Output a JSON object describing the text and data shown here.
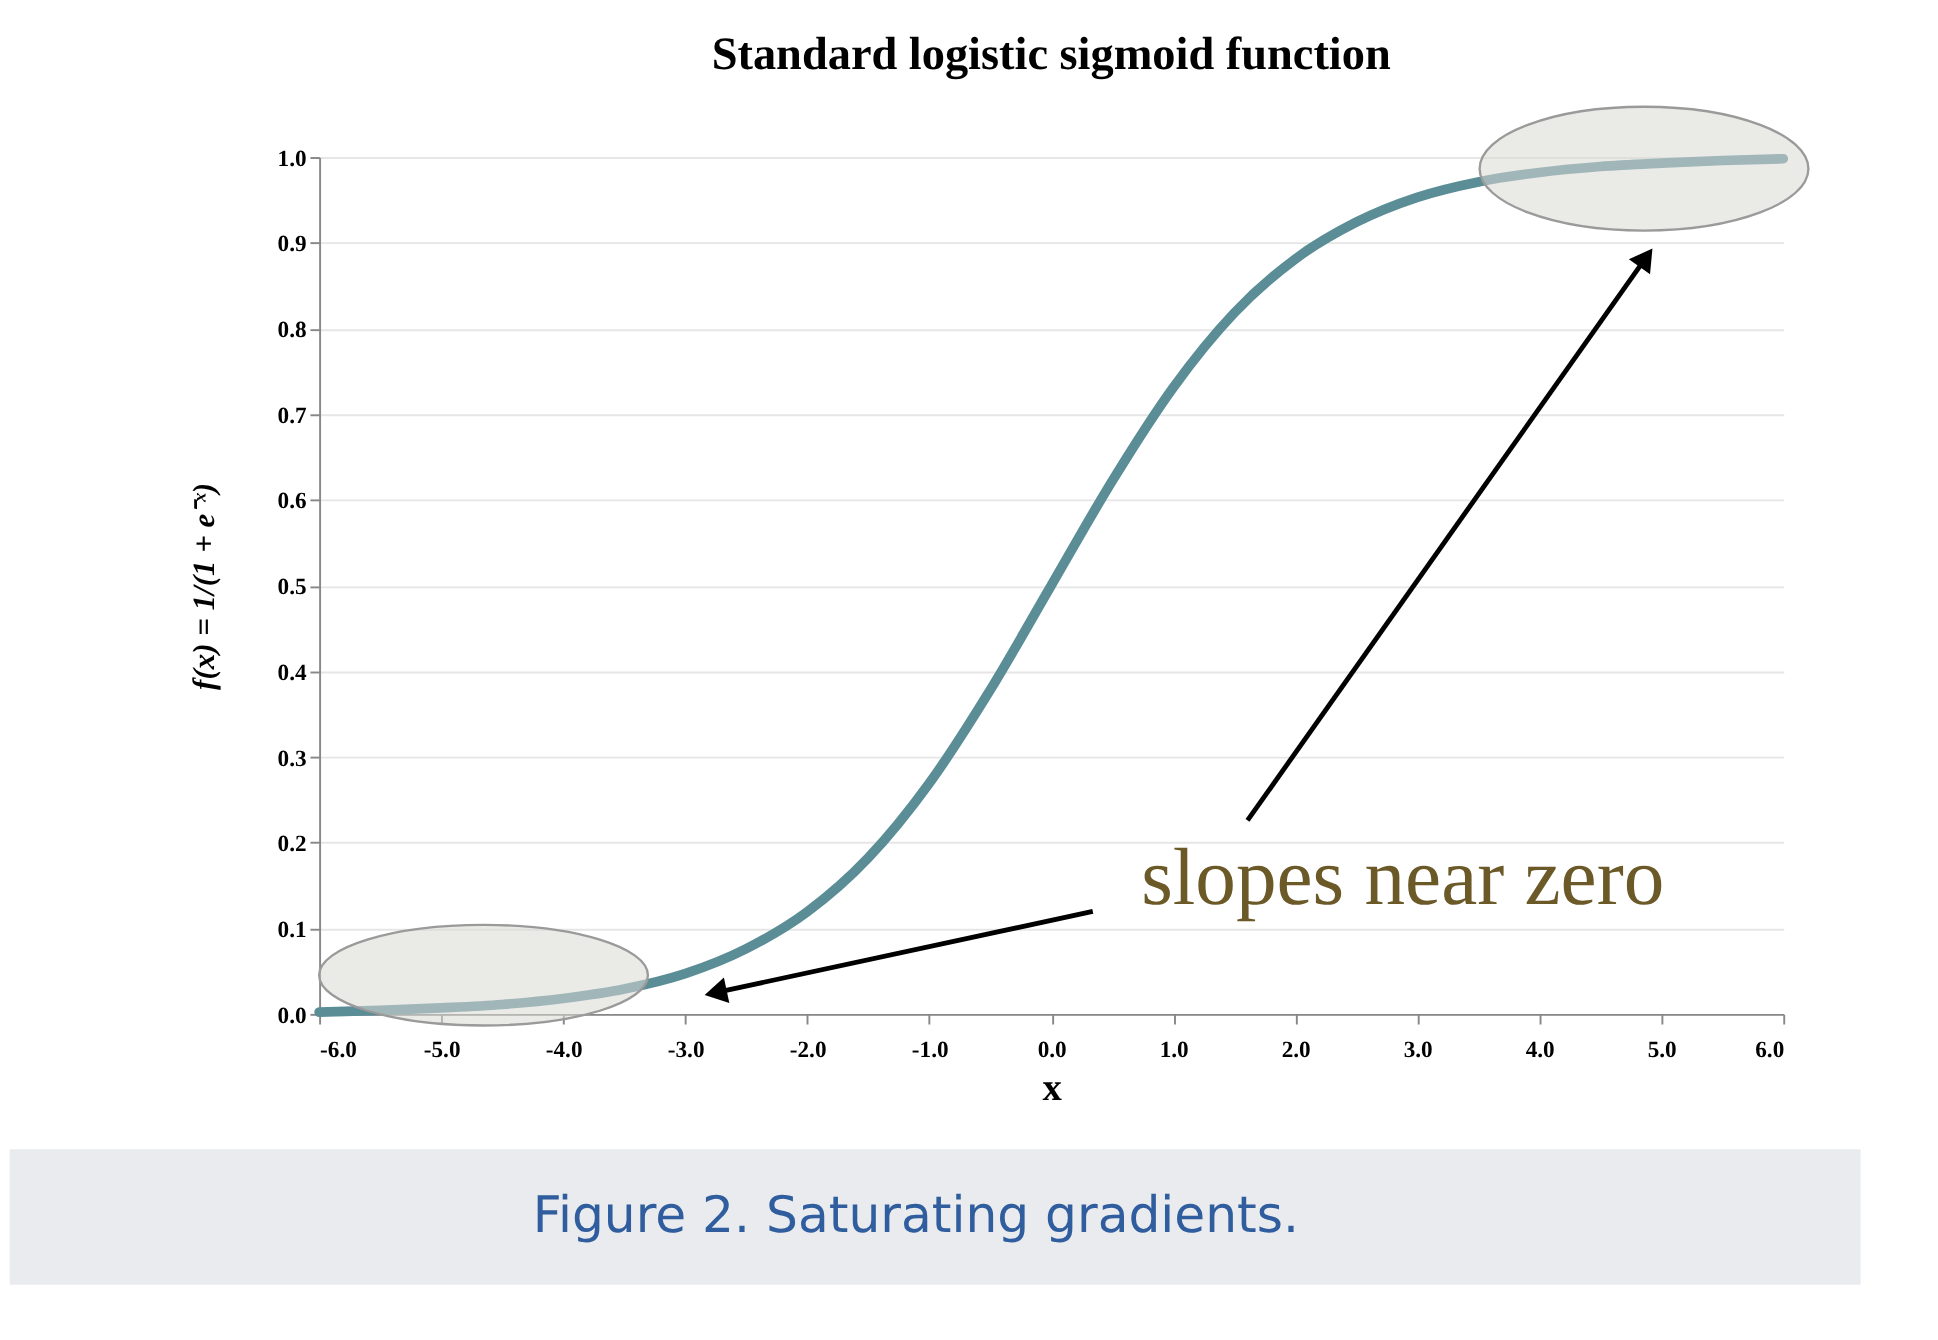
{
  "chart_data": {
    "type": "line",
    "title": "Standard logistic sigmoid function",
    "xlabel": "x",
    "ylabel": "f(x) = 1/(1 + e⁻ˣ)",
    "annotations": [
      "slopes near zero",
      "Figure 2. Saturating gradients."
    ],
    "x": [
      -6,
      -5.5,
      -5,
      -4.5,
      -4,
      -3.5,
      -3,
      -2.5,
      -2,
      -1.5,
      -1,
      -0.5,
      0,
      0.5,
      1,
      1.5,
      2,
      2.5,
      3,
      3.5,
      4,
      4.5,
      5,
      5.5,
      6
    ],
    "series": [
      {
        "color": "#5b8d97",
        "values": [
          0.002,
          0.004,
          0.007,
          0.011,
          0.018,
          0.029,
          0.047,
          0.076,
          0.119,
          0.182,
          0.269,
          0.378,
          0.5,
          0.622,
          0.731,
          0.818,
          0.881,
          0.924,
          0.953,
          0.971,
          0.982,
          0.989,
          0.993,
          0.996,
          0.998
        ]
      }
    ],
    "xlim": [
      -6,
      6
    ],
    "ylim": [
      0,
      1
    ],
    "xticks": [
      {
        "value": -6,
        "label": "-6.0"
      },
      {
        "value": -5,
        "label": "-5.0"
      },
      {
        "value": -4,
        "label": "-4.0"
      },
      {
        "value": -3,
        "label": "-3.0"
      },
      {
        "value": -2,
        "label": "-2.0"
      },
      {
        "value": -1,
        "label": "-1.0"
      },
      {
        "value": 0,
        "label": "0.0"
      },
      {
        "value": 1,
        "label": "1.0"
      },
      {
        "value": 2,
        "label": "2.0"
      },
      {
        "value": 3,
        "label": "3.0"
      },
      {
        "value": 4,
        "label": "4.0"
      },
      {
        "value": 5,
        "label": "5.0"
      },
      {
        "value": 6,
        "label": "6.0"
      }
    ],
    "yticks": [
      {
        "value": 0,
        "label": "0.0"
      },
      0.1,
      0.2,
      0.3,
      0.4,
      0.5,
      0.6,
      0.7,
      0.8,
      0.9,
      {
        "value": 1,
        "label": "1.0"
      }
    ],
    "grid": "y",
    "line_style": "solid"
  }
}
